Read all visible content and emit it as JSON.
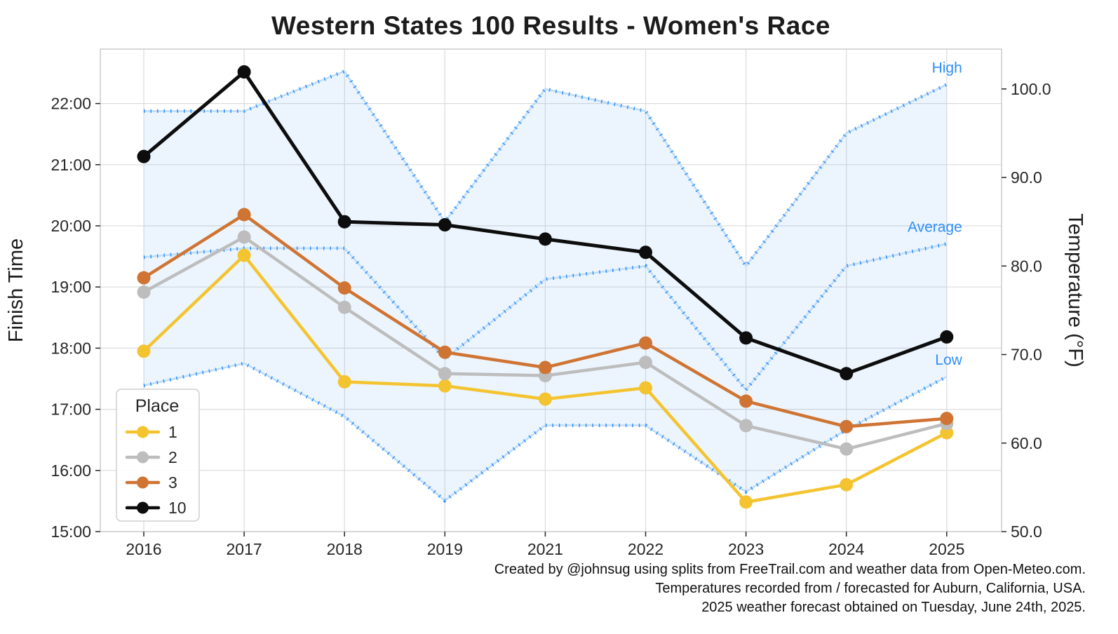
{
  "title": "Western States 100 Results - Women's Race",
  "footer": {
    "line1": "Created by @johnsug using splits from FreeTrail.com and weather data from Open-Meteo.com.",
    "line2": "Temperatures recorded from / forecasted for Auburn, California, USA.",
    "line3": "2025 weather forecast obtained on Tuesday, June 24th, 2025."
  },
  "chart_data": {
    "type": "line",
    "title": "Western States 100 Results - Women's Race",
    "categories": [
      "2016",
      "2017",
      "2018",
      "2019",
      "2021",
      "2022",
      "2023",
      "2024",
      "2025"
    ],
    "left_axis": {
      "label": "Finish Time",
      "tick_labels": [
        "15:00",
        "16:00",
        "17:00",
        "18:00",
        "19:00",
        "20:00",
        "21:00",
        "22:00"
      ],
      "min_hours": 15.0,
      "max_hours": 22.89
    },
    "right_axis": {
      "label": "Temperature (°F)",
      "tick_labels": [
        "50.0",
        "60.0",
        "70.0",
        "80.0",
        "90.0",
        "100.0"
      ],
      "min": 50.0,
      "max": 104.5
    },
    "grid": true,
    "legend": {
      "title": "Place",
      "position": "lower-left"
    },
    "band": {
      "between": [
        "High",
        "Low"
      ],
      "fill": "rgba(47,143,247,0.09)"
    },
    "temperature_series": [
      {
        "name": "High",
        "color": "#2F8FF7",
        "style": "dotted",
        "values_f": [
          97.5,
          97.5,
          102,
          85,
          100,
          97.5,
          80,
          95,
          100.5
        ]
      },
      {
        "name": "Average",
        "color": "#2F8FF7",
        "style": "dotted",
        "values_f": [
          81,
          82,
          82,
          69.5,
          78.5,
          80,
          66,
          80,
          82.5
        ]
      },
      {
        "name": "Low",
        "color": "#2F8FF7",
        "style": "dotted",
        "values_f": [
          66.5,
          69,
          63,
          53.5,
          62,
          62,
          54.5,
          61.5,
          67.5
        ]
      }
    ],
    "place_series": [
      {
        "name": "1",
        "color": "#F4C430",
        "times": [
          "17:57",
          "19:31",
          "17:27",
          "17:23",
          "17:10",
          "17:21",
          "15:29",
          "15:46",
          "16:37"
        ]
      },
      {
        "name": "2",
        "color": "#BDBDBD",
        "times": [
          "18:55",
          "19:49",
          "18:40",
          "17:35",
          "17:33",
          "17:46",
          "16:44",
          "16:21",
          "16:46"
        ]
      },
      {
        "name": "3",
        "color": "#CF7433",
        "times": [
          "19:09",
          "20:11",
          "18:59",
          "17:56",
          "17:41",
          "18:05",
          "17:08",
          "16:43",
          "16:51"
        ]
      },
      {
        "name": "10",
        "color": "#0d0d0d",
        "times": [
          "21:08",
          "22:31",
          "20:04",
          "20:01",
          "19:47",
          "19:34",
          "18:10",
          "17:35",
          "18:11"
        ]
      }
    ]
  }
}
